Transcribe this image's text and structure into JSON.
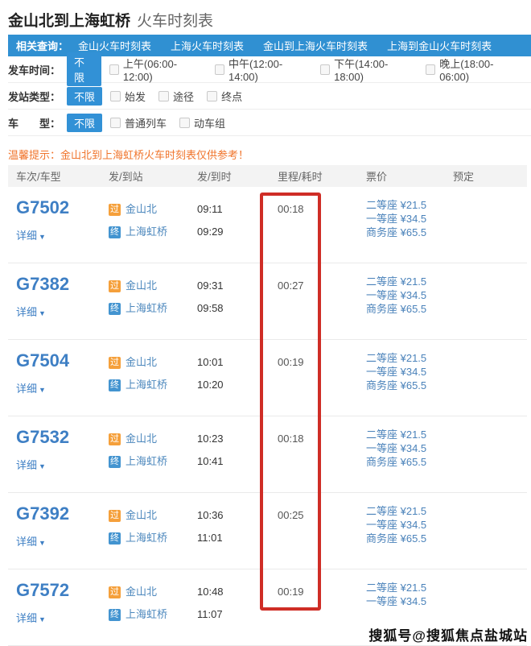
{
  "page": {
    "title_main": "金山北到上海虹桥",
    "title_sub": "火车时刻表"
  },
  "related": {
    "label": "相关查询：",
    "links": [
      "金山火车时刻表",
      "上海火车时刻表",
      "金山到上海火车时刻表",
      "上海到金山火车时刻表"
    ]
  },
  "filters": [
    {
      "label": "发车时间：",
      "selected": "不限",
      "options": [
        "上午(06:00-12:00)",
        "中午(12:00-14:00)",
        "下午(14:00-18:00)",
        "晚上(18:00-06:00)"
      ]
    },
    {
      "label": "发站类型：",
      "selected": "不限",
      "options": [
        "始发",
        "途径",
        "终点"
      ]
    },
    {
      "label": "车　　型：",
      "selected": "不限",
      "options": [
        "普通列车",
        "动车组"
      ]
    }
  ],
  "notice": "温馨提示：金山北到上海虹桥火车时刻表仅供参考！",
  "table": {
    "headers": [
      "车次/车型",
      "发/到站",
      "发/到时",
      "里程/耗时",
      "票价",
      "预定"
    ],
    "rows": [
      {
        "train_no": "G7502",
        "detail_label": "详细",
        "depart_badge": "过",
        "depart_station": "金山北",
        "depart_time": "09:11",
        "arrive_badge": "终",
        "arrive_station": "上海虹桥",
        "arrive_time": "09:29",
        "duration": "00:18",
        "prices": [
          "二等座 ¥21.5",
          "一等座 ¥34.5",
          "商务座 ¥65.5"
        ]
      },
      {
        "train_no": "G7382",
        "detail_label": "详细",
        "depart_badge": "过",
        "depart_station": "金山北",
        "depart_time": "09:31",
        "arrive_badge": "终",
        "arrive_station": "上海虹桥",
        "arrive_time": "09:58",
        "duration": "00:27",
        "prices": [
          "二等座 ¥21.5",
          "一等座 ¥34.5",
          "商务座 ¥65.5"
        ]
      },
      {
        "train_no": "G7504",
        "detail_label": "详细",
        "depart_badge": "过",
        "depart_station": "金山北",
        "depart_time": "10:01",
        "arrive_badge": "终",
        "arrive_station": "上海虹桥",
        "arrive_time": "10:20",
        "duration": "00:19",
        "prices": [
          "二等座 ¥21.5",
          "一等座 ¥34.5",
          "商务座 ¥65.5"
        ]
      },
      {
        "train_no": "G7532",
        "detail_label": "详细",
        "depart_badge": "过",
        "depart_station": "金山北",
        "depart_time": "10:23",
        "arrive_badge": "终",
        "arrive_station": "上海虹桥",
        "arrive_time": "10:41",
        "duration": "00:18",
        "prices": [
          "二等座 ¥21.5",
          "一等座 ¥34.5",
          "商务座 ¥65.5"
        ]
      },
      {
        "train_no": "G7392",
        "detail_label": "详细",
        "depart_badge": "过",
        "depart_station": "金山北",
        "depart_time": "10:36",
        "arrive_badge": "终",
        "arrive_station": "上海虹桥",
        "arrive_time": "11:01",
        "duration": "00:25",
        "prices": [
          "二等座 ¥21.5",
          "一等座 ¥34.5",
          "商务座 ¥65.5"
        ]
      },
      {
        "train_no": "G7572",
        "detail_label": "详细",
        "depart_badge": "过",
        "depart_station": "金山北",
        "depart_time": "10:48",
        "arrive_badge": "终",
        "arrive_station": "上海虹桥",
        "arrive_time": "11:07",
        "duration": "00:19",
        "prices": [
          "二等座 ¥21.5",
          "一等座 ¥34.5"
        ]
      }
    ]
  },
  "watermark": "搜狐号@搜狐焦点盐城站",
  "colors": {
    "nav_blue": "#3090d2",
    "link_blue": "#3e7fc4",
    "badge_orange": "#f5a03b",
    "badge_blue": "#4394d0",
    "notice_orange": "#f0742b",
    "highlight_red": "#cf2d26"
  }
}
